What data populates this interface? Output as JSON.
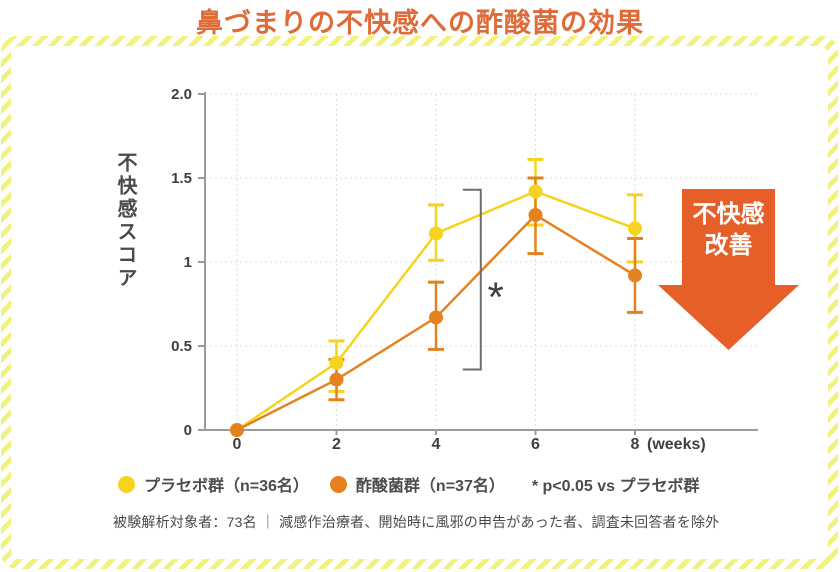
{
  "title": "鼻づまりの不快感への酢酸菌の効果",
  "chart_data": {
    "type": "line",
    "x": [
      0,
      2,
      4,
      6,
      8
    ],
    "x_axis_suffix": "(weeks)",
    "ylabel": "不快感スコア",
    "ylim": [
      0,
      2
    ],
    "y_ticks": [
      {
        "v": 0,
        "label": "0"
      },
      {
        "v": 0.5,
        "label": "0.5"
      },
      {
        "v": 1,
        "label": "1"
      },
      {
        "v": 1.5,
        "label": "1.5"
      },
      {
        "v": 2,
        "label": "2.0"
      }
    ],
    "grid": true,
    "legend_position": "bottom",
    "series": [
      {
        "name": "プラセボ群（n=36名）",
        "color": "#F6D31F",
        "values": [
          0,
          0.4,
          1.17,
          1.42,
          1.2
        ],
        "err_low": [
          0,
          0.23,
          1.01,
          1.22,
          1.0
        ],
        "err_high": [
          0,
          0.53,
          1.34,
          1.61,
          1.4
        ]
      },
      {
        "name": "酢酸菌群（n=37名）",
        "color": "#E5821F",
        "values": [
          0,
          0.3,
          0.67,
          1.28,
          0.92
        ],
        "err_low": [
          0,
          0.18,
          0.48,
          1.05,
          0.7
        ],
        "err_high": [
          0,
          0.42,
          0.88,
          1.5,
          1.14
        ]
      }
    ],
    "significance": {
      "sig_note": "* p<0.05 vs プラセボ群",
      "symbol": "*",
      "bracket": {
        "x_week": 4.9,
        "y_from": 0.36,
        "y_to": 1.43
      },
      "symbol_pos": {
        "x_week": 5.2,
        "y_value": 0.86
      }
    }
  },
  "arrow": {
    "line1": "不快感",
    "line2": "改善",
    "color": "#E75F28"
  },
  "footnote": "被験解析対象者：73名 ｜ 減感作治療者、開始時に風邪の申告があった者、調査未回答者を除外",
  "colors": {
    "title": "#DF6B38",
    "axis": "#9b9b9b",
    "tick_text": "#3f3f3f",
    "grid": "#DCDCDC",
    "bracket": "#6e6e6e",
    "stripe": "#F2F180"
  }
}
